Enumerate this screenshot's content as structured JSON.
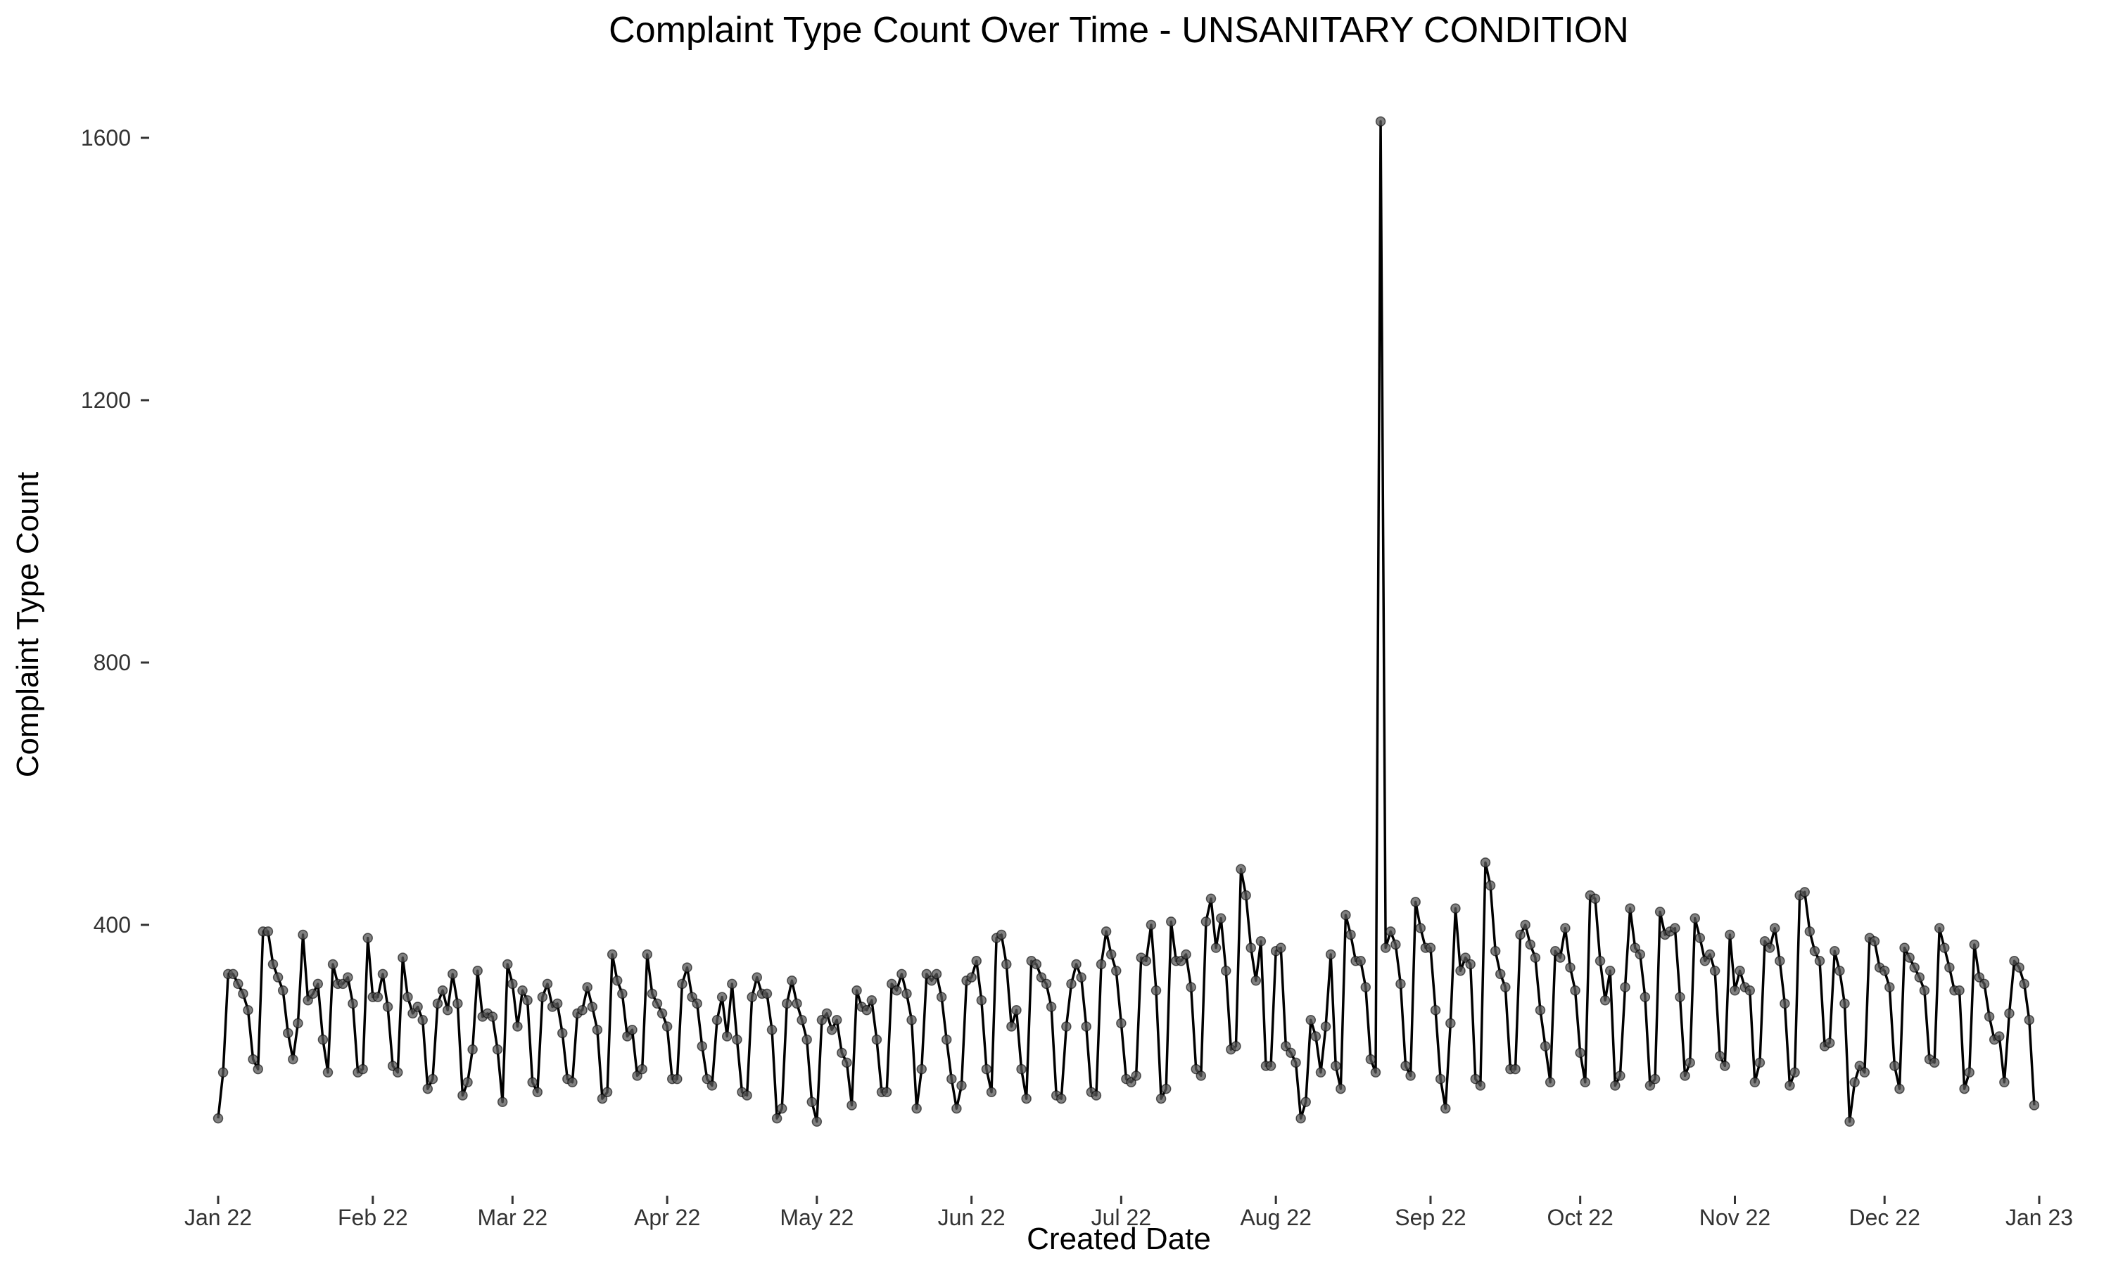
{
  "chart_data": {
    "type": "line",
    "title": "Complaint Type Count Over Time - UNSANITARY CONDITION",
    "xlabel": "Created Date",
    "ylabel": "Complaint Type Count",
    "x_start": "2022-01-01",
    "x_end": "2022-12-31",
    "xlim": [
      "2022-01-01",
      "2023-01-01"
    ],
    "ylim": [
      0,
      1630
    ],
    "x_ticks": [
      {
        "label": "Jan 22",
        "date": "2022-01-01"
      },
      {
        "label": "Feb 22",
        "date": "2022-02-01"
      },
      {
        "label": "Mar 22",
        "date": "2022-03-01"
      },
      {
        "label": "Apr 22",
        "date": "2022-04-01"
      },
      {
        "label": "May 22",
        "date": "2022-05-01"
      },
      {
        "label": "Jun 22",
        "date": "2022-06-01"
      },
      {
        "label": "Jul 22",
        "date": "2022-07-01"
      },
      {
        "label": "Aug 22",
        "date": "2022-08-01"
      },
      {
        "label": "Sep 22",
        "date": "2022-09-01"
      },
      {
        "label": "Oct 22",
        "date": "2022-10-01"
      },
      {
        "label": "Nov 22",
        "date": "2022-11-01"
      },
      {
        "label": "Dec 22",
        "date": "2022-12-01"
      },
      {
        "label": "Jan 23",
        "date": "2023-01-01"
      }
    ],
    "y_ticks": [
      {
        "label": "400",
        "value": 400
      },
      {
        "label": "800",
        "value": 800
      },
      {
        "label": "1200",
        "value": 1200
      },
      {
        "label": "1600",
        "value": 1600
      }
    ],
    "grid": false,
    "line_color": "#000000",
    "point_color": "#555555",
    "values": [
      105,
      175,
      325,
      325,
      310,
      295,
      270,
      195,
      180,
      390,
      390,
      340,
      320,
      300,
      235,
      195,
      250,
      385,
      285,
      295,
      310,
      225,
      175,
      340,
      310,
      310,
      320,
      280,
      175,
      180,
      380,
      290,
      290,
      325,
      275,
      185,
      175,
      350,
      290,
      265,
      275,
      255,
      150,
      165,
      280,
      300,
      270,
      325,
      280,
      140,
      160,
      210,
      330,
      260,
      265,
      260,
      210,
      130,
      340,
      310,
      245,
      300,
      285,
      160,
      145,
      290,
      310,
      275,
      280,
      235,
      165,
      160,
      265,
      270,
      305,
      275,
      240,
      135,
      145,
      355,
      315,
      295,
      230,
      240,
      170,
      180,
      355,
      295,
      280,
      265,
      245,
      165,
      165,
      310,
      335,
      290,
      280,
      215,
      165,
      155,
      255,
      290,
      230,
      310,
      225,
      145,
      140,
      290,
      320,
      295,
      295,
      240,
      105,
      120,
      280,
      315,
      280,
      255,
      225,
      130,
      100,
      255,
      265,
      240,
      255,
      205,
      190,
      125,
      300,
      275,
      270,
      285,
      225,
      145,
      145,
      310,
      300,
      325,
      295,
      255,
      120,
      180,
      325,
      315,
      325,
      290,
      225,
      165,
      120,
      155,
      315,
      320,
      345,
      285,
      180,
      145,
      380,
      385,
      340,
      245,
      270,
      180,
      135,
      345,
      340,
      320,
      310,
      275,
      140,
      135,
      245,
      310,
      340,
      320,
      245,
      145,
      140,
      340,
      390,
      355,
      330,
      250,
      165,
      160,
      170,
      350,
      345,
      400,
      300,
      135,
      150,
      405,
      345,
      345,
      355,
      305,
      180,
      170,
      405,
      440,
      365,
      410,
      330,
      210,
      215,
      485,
      445,
      365,
      315,
      375,
      185,
      185,
      360,
      365,
      215,
      205,
      190,
      105,
      130,
      255,
      230,
      175,
      245,
      355,
      185,
      150,
      415,
      385,
      345,
      345,
      305,
      195,
      175,
      1625,
      365,
      390,
      370,
      310,
      185,
      170,
      435,
      395,
      365,
      365,
      270,
      165,
      120,
      250,
      425,
      330,
      350,
      340,
      165,
      155,
      495,
      460,
      360,
      325,
      305,
      180,
      180,
      385,
      400,
      370,
      350,
      270,
      215,
      160,
      360,
      350,
      395,
      335,
      300,
      205,
      160,
      445,
      440,
      345,
      285,
      330,
      155,
      170,
      305,
      425,
      365,
      355,
      290,
      155,
      165,
      420,
      385,
      390,
      395,
      290,
      170,
      190,
      410,
      380,
      345,
      355,
      330,
      200,
      185,
      385,
      300,
      330,
      305,
      300,
      160,
      190,
      375,
      365,
      395,
      345,
      280,
      155,
      175,
      445,
      450,
      390,
      360,
      345,
      215,
      220,
      360,
      330,
      280,
      100,
      160,
      185,
      175,
      380,
      375,
      335,
      330,
      305,
      185,
      150,
      365,
      350,
      335,
      320,
      300,
      195,
      190,
      395,
      365,
      335,
      300,
      300,
      150,
      175,
      370,
      320,
      310,
      260,
      225,
      230,
      160,
      265,
      345,
      335,
      310,
      255,
      125
    ]
  }
}
